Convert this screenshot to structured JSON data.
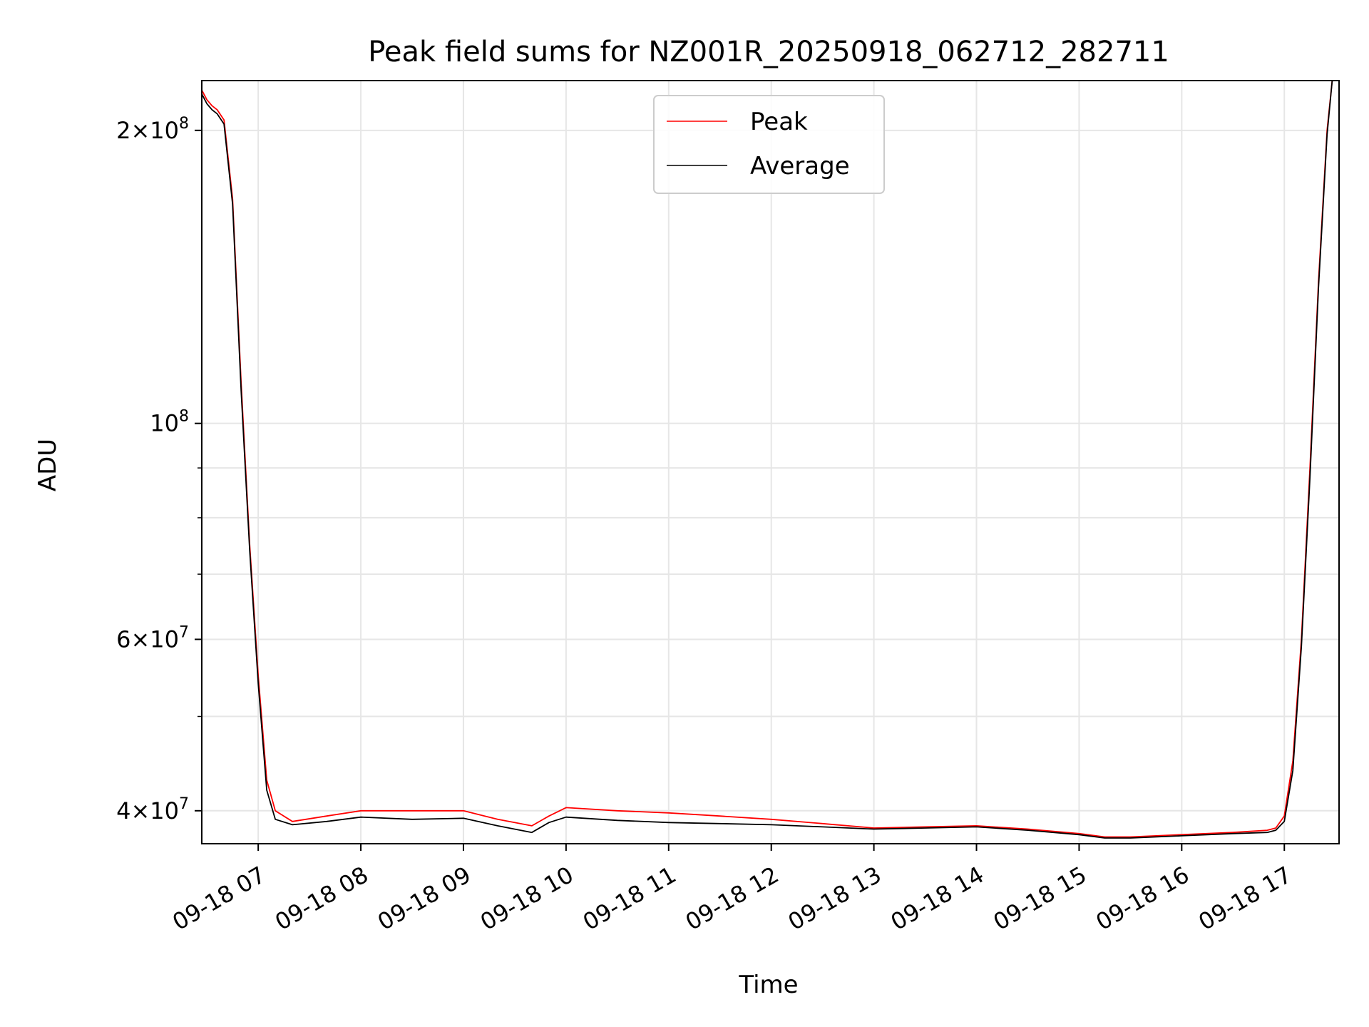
{
  "chart_data": {
    "type": "line",
    "title": "Peak field sums for NZ001R_20250918_062712_282711",
    "xlabel": "Time",
    "ylabel": "ADU",
    "y_scale": "log",
    "ylim": [
      37000000,
      225000000
    ],
    "xlim": [
      "2025-09-18 06:27",
      "2025-09-18 17:32"
    ],
    "grid": true,
    "legend": {
      "placement": "upper center",
      "entries": [
        "Peak",
        "Average"
      ]
    },
    "x_tick_labels": [
      "09-18 07",
      "09-18 08",
      "09-18 09",
      "09-18 10",
      "09-18 11",
      "09-18 12",
      "09-18 13",
      "09-18 14",
      "09-18 15",
      "09-18 16",
      "09-18 17"
    ],
    "y_tick_labels": [
      {
        "value": 40000000,
        "mantissa": "4",
        "exp": "7"
      },
      {
        "value": 60000000,
        "mantissa": "6",
        "exp": "7"
      },
      {
        "value": 100000000,
        "mantissa": "",
        "exp": "8"
      },
      {
        "value": 200000000,
        "mantissa": "2",
        "exp": "8"
      }
    ],
    "series": [
      {
        "name": "Peak",
        "color": "#ff0000",
        "x": [
          "06:27",
          "06:30",
          "06:33",
          "06:36",
          "06:40",
          "06:45",
          "06:50",
          "06:55",
          "07:00",
          "07:05",
          "07:10",
          "07:20",
          "07:40",
          "08:00",
          "08:30",
          "09:00",
          "09:20",
          "09:40",
          "09:50",
          "10:00",
          "10:30",
          "11:00",
          "11:30",
          "12:00",
          "12:30",
          "13:00",
          "13:30",
          "14:00",
          "14:30",
          "15:00",
          "15:15",
          "15:30",
          "16:00",
          "16:30",
          "16:50",
          "16:55",
          "17:00",
          "17:05",
          "17:10",
          "17:15",
          "17:20",
          "17:25",
          "17:28"
        ],
        "y": [
          220000000,
          215000000,
          212000000,
          210000000,
          205000000,
          170000000,
          110000000,
          75000000,
          55000000,
          43000000,
          40000000,
          39000000,
          39500000,
          40000000,
          40000000,
          40000000,
          39200000,
          38600000,
          39500000,
          40300000,
          40000000,
          39800000,
          39500000,
          39200000,
          38800000,
          38400000,
          38500000,
          38600000,
          38300000,
          37900000,
          37600000,
          37600000,
          37800000,
          38000000,
          38200000,
          38400000,
          39500000,
          45000000,
          60000000,
          90000000,
          140000000,
          200000000,
          225000000
        ]
      },
      {
        "name": "Average",
        "color": "#000000",
        "x": [
          "06:27",
          "06:30",
          "06:33",
          "06:36",
          "06:40",
          "06:45",
          "06:50",
          "06:55",
          "07:00",
          "07:05",
          "07:10",
          "07:20",
          "07:40",
          "08:00",
          "08:30",
          "09:00",
          "09:20",
          "09:40",
          "09:50",
          "10:00",
          "10:30",
          "11:00",
          "11:30",
          "12:00",
          "12:30",
          "13:00",
          "13:30",
          "14:00",
          "14:30",
          "15:00",
          "15:15",
          "15:30",
          "16:00",
          "16:30",
          "16:50",
          "16:55",
          "17:00",
          "17:05",
          "17:10",
          "17:15",
          "17:20",
          "17:25",
          "17:28"
        ],
        "y": [
          218000000,
          213000000,
          210000000,
          208000000,
          203000000,
          168000000,
          108000000,
          74000000,
          54000000,
          42000000,
          39200000,
          38700000,
          39000000,
          39400000,
          39200000,
          39300000,
          38600000,
          38000000,
          38900000,
          39400000,
          39100000,
          38900000,
          38800000,
          38700000,
          38500000,
          38300000,
          38400000,
          38500000,
          38200000,
          37800000,
          37500000,
          37500000,
          37700000,
          37900000,
          38000000,
          38200000,
          39000000,
          44000000,
          59000000,
          88000000,
          138000000,
          198000000,
          225000000
        ]
      }
    ]
  }
}
